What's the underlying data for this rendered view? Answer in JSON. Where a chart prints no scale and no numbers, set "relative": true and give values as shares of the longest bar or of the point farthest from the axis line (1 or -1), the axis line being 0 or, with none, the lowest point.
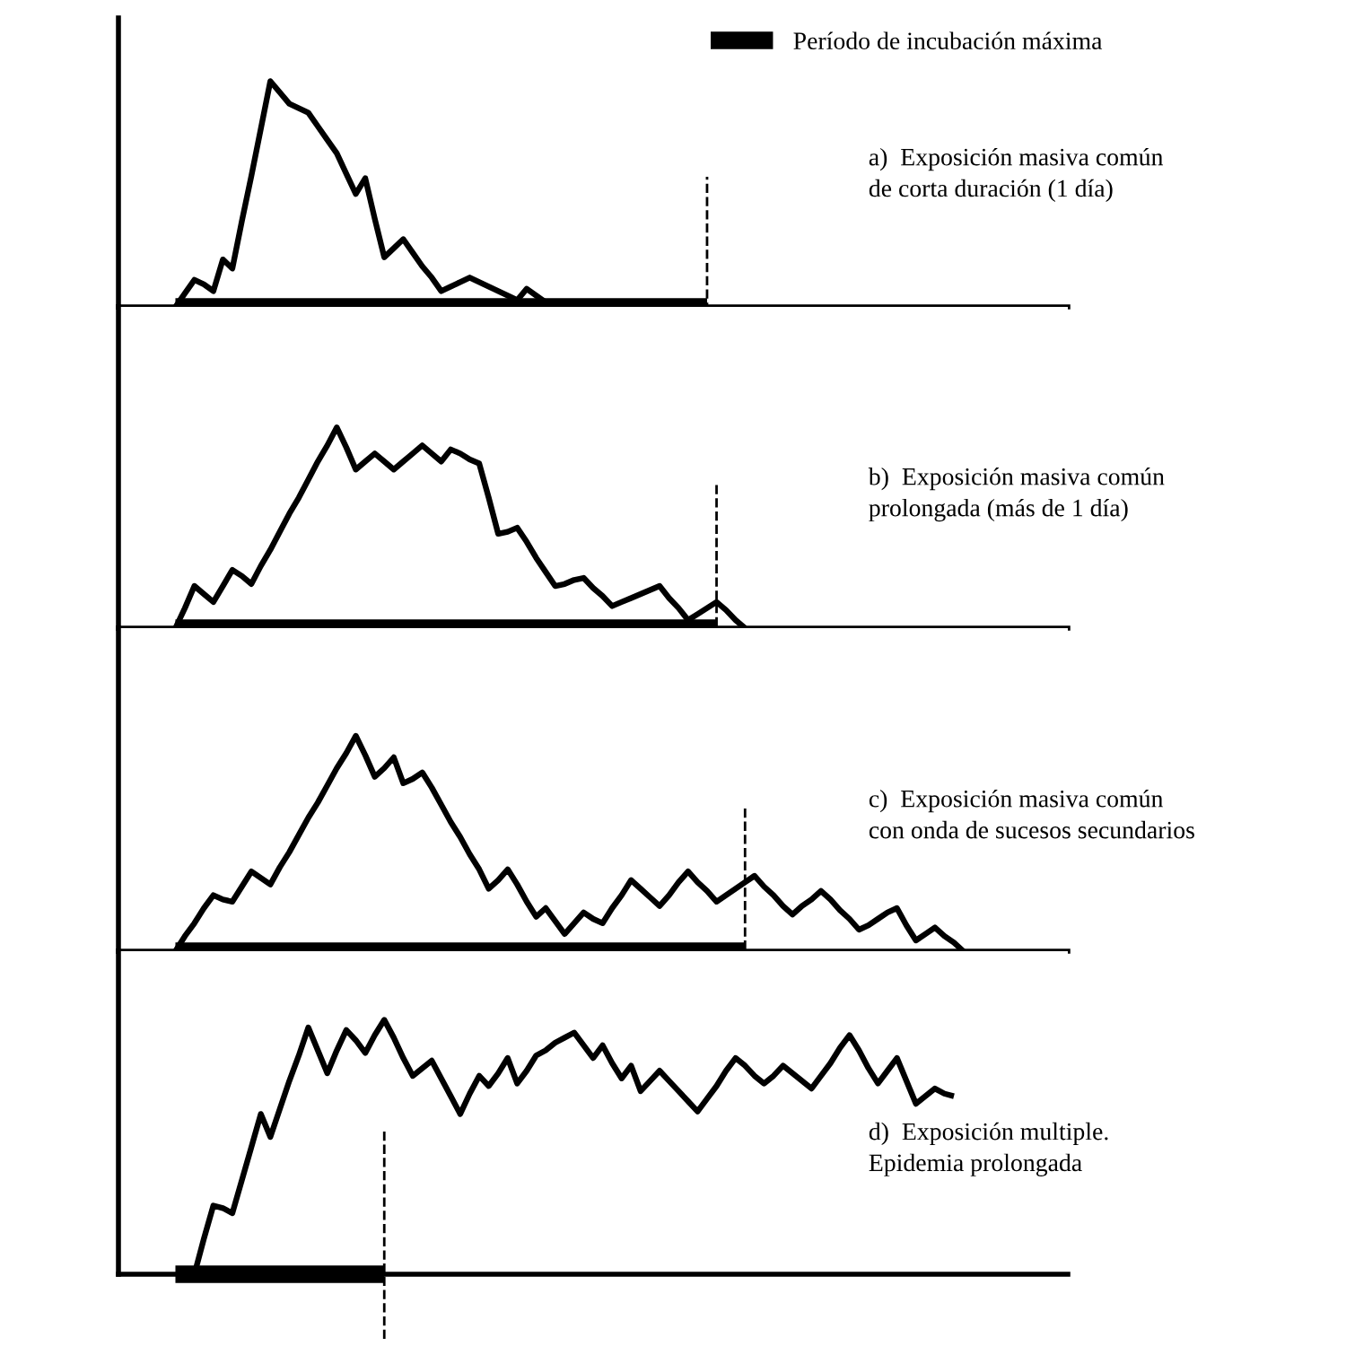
{
  "chart_data": [
    {
      "type": "line",
      "relative": true,
      "legend": "top right",
      "categories": [
        null,
        null,
        null,
        null,
        null,
        null,
        null,
        null,
        null,
        null,
        null,
        null,
        null,
        null,
        null,
        null,
        null,
        null,
        null,
        null,
        null,
        null,
        null,
        null,
        null,
        null,
        null,
        null,
        null,
        null,
        null,
        null,
        null,
        null,
        null,
        null,
        null,
        null,
        null,
        null,
        null,
        null,
        null,
        null,
        null,
        null,
        null,
        null,
        null,
        null,
        null,
        null,
        null,
        null,
        null,
        null,
        null,
        null,
        null,
        null,
        null,
        null,
        null,
        null,
        null,
        null,
        null,
        null,
        null,
        null,
        null,
        null,
        null,
        null,
        null,
        null,
        null,
        null,
        null,
        null,
        null,
        null,
        null,
        null,
        null,
        null,
        null,
        null,
        null,
        null,
        null,
        null,
        null,
        null,
        null,
        null,
        null,
        null,
        null,
        null,
        null
      ],
      "series": [
        {
          "color": "#000000",
          "values": [
            null,
            null,
            null,
            null,
            null,
            null,
            0.0,
            0.06,
            0.12,
            0.1,
            0.07,
            0.21,
            0.17,
            0.38,
            0.58,
            0.79,
            1.0,
            0.95,
            0.9,
            0.88,
            0.86,
            0.8,
            0.74,
            0.68,
            0.59,
            0.5,
            0.57,
            0.39,
            0.22,
            0.26,
            0.3,
            0.24,
            0.18,
            0.13,
            0.07,
            0.09,
            0.11,
            0.13,
            0.11,
            0.09,
            0.07,
            0.05,
            0.03,
            0.08,
            0.05,
            0.02,
            null,
            null,
            null,
            null,
            null,
            null,
            null,
            null,
            null,
            null,
            null,
            null,
            null,
            null,
            null,
            null,
            null,
            null,
            null,
            null,
            null,
            null,
            null,
            null,
            null,
            null,
            null,
            null,
            null,
            null,
            null,
            null,
            null,
            null,
            null,
            null,
            null,
            null,
            null,
            null,
            null,
            null,
            null,
            null,
            null,
            null,
            null,
            null,
            null,
            null,
            null,
            null,
            null,
            null,
            null
          ]
        },
        {
          "name": "Período de incubación máxima",
          "color": "#000000",
          "values": [
            null,
            null,
            null,
            null,
            null,
            null,
            0,
            0,
            0,
            0,
            0,
            0,
            0,
            0,
            0,
            0,
            0,
            0,
            0,
            0,
            0,
            0,
            0,
            0,
            0,
            0,
            0,
            0,
            0,
            0,
            0,
            0,
            0,
            0,
            0,
            0,
            0,
            0,
            0,
            0,
            0,
            0,
            0,
            0,
            0,
            0,
            0,
            0,
            0,
            0,
            0,
            0,
            0,
            0,
            0,
            0,
            0,
            0,
            0,
            0,
            0,
            0,
            0,
            null,
            null,
            null,
            null,
            null,
            null,
            null,
            null,
            null,
            null,
            null,
            null,
            null,
            null,
            null,
            null,
            null,
            null,
            null,
            null,
            null,
            null,
            null,
            null,
            null,
            null,
            null,
            null,
            null,
            null,
            null,
            null,
            null,
            null,
            null,
            null,
            null,
            null
          ]
        }
      ],
      "annotations": [
        "a)  Exposición masiva común\nde corta duración (1 día)"
      ]
    },
    {
      "type": "line",
      "relative": true,
      "categories": [
        null,
        null,
        null,
        null,
        null,
        null,
        null,
        null,
        null,
        null,
        null,
        null,
        null,
        null,
        null,
        null,
        null,
        null,
        null,
        null,
        null,
        null,
        null,
        null,
        null,
        null,
        null,
        null,
        null,
        null,
        null,
        null,
        null,
        null,
        null,
        null,
        null,
        null,
        null,
        null,
        null,
        null,
        null,
        null,
        null,
        null,
        null,
        null,
        null,
        null,
        null,
        null,
        null,
        null,
        null,
        null,
        null,
        null,
        null,
        null,
        null,
        null,
        null,
        null,
        null,
        null,
        null,
        null,
        null,
        null,
        null,
        null,
        null,
        null,
        null,
        null,
        null,
        null,
        null,
        null,
        null,
        null,
        null,
        null,
        null,
        null,
        null,
        null,
        null,
        null,
        null,
        null,
        null,
        null,
        null,
        null,
        null,
        null,
        null,
        null,
        null
      ],
      "series": [
        {
          "color": "#000000",
          "values": [
            null,
            null,
            null,
            null,
            null,
            null,
            0.0,
            0.1,
            0.21,
            0.17,
            0.13,
            0.21,
            0.29,
            0.26,
            0.22,
            0.31,
            0.39,
            0.48,
            0.57,
            0.65,
            0.74,
            0.83,
            0.91,
            1.0,
            0.9,
            0.79,
            0.83,
            0.87,
            0.83,
            0.79,
            0.83,
            0.87,
            0.91,
            0.87,
            0.83,
            0.89,
            0.87,
            0.84,
            0.82,
            0.65,
            0.47,
            0.48,
            0.5,
            0.43,
            0.35,
            0.28,
            0.21,
            0.22,
            0.24,
            0.25,
            0.2,
            0.16,
            0.11,
            0.13,
            0.15,
            0.17,
            0.19,
            0.21,
            0.15,
            0.1,
            0.04,
            0.07,
            0.1,
            0.13,
            0.09,
            0.04,
            0.0,
            null,
            null,
            null,
            null,
            null,
            null,
            null,
            null,
            null,
            null,
            null,
            null,
            null,
            null,
            null,
            null,
            null,
            null,
            null,
            null,
            null,
            null,
            null,
            null,
            null,
            null,
            null,
            null,
            null,
            null,
            null,
            null,
            null,
            null
          ]
        },
        {
          "color": "#000000",
          "values": [
            null,
            null,
            null,
            null,
            null,
            null,
            0,
            0,
            0,
            0,
            0,
            0,
            0,
            0,
            0,
            0,
            0,
            0,
            0,
            0,
            0,
            0,
            0,
            0,
            0,
            0,
            0,
            0,
            0,
            0,
            0,
            0,
            0,
            0,
            0,
            0,
            0,
            0,
            0,
            0,
            0,
            0,
            0,
            0,
            0,
            0,
            0,
            0,
            0,
            0,
            0,
            0,
            0,
            0,
            0,
            0,
            0,
            0,
            0,
            0,
            0,
            0,
            0,
            0,
            null,
            null,
            null,
            null,
            null,
            null,
            null,
            null,
            null,
            null,
            null,
            null,
            null,
            null,
            null,
            null,
            null,
            null,
            null,
            null,
            null,
            null,
            null,
            null,
            null,
            null,
            null,
            null,
            null,
            null,
            null,
            null,
            null,
            null,
            null,
            null,
            null
          ]
        }
      ],
      "annotations": [
        "b)  Exposición masiva común\nprolongada (más de 1 día)"
      ]
    },
    {
      "type": "line",
      "relative": true,
      "categories": [
        null,
        null,
        null,
        null,
        null,
        null,
        null,
        null,
        null,
        null,
        null,
        null,
        null,
        null,
        null,
        null,
        null,
        null,
        null,
        null,
        null,
        null,
        null,
        null,
        null,
        null,
        null,
        null,
        null,
        null,
        null,
        null,
        null,
        null,
        null,
        null,
        null,
        null,
        null,
        null,
        null,
        null,
        null,
        null,
        null,
        null,
        null,
        null,
        null,
        null,
        null,
        null,
        null,
        null,
        null,
        null,
        null,
        null,
        null,
        null,
        null,
        null,
        null,
        null,
        null,
        null,
        null,
        null,
        null,
        null,
        null,
        null,
        null,
        null,
        null,
        null,
        null,
        null,
        null,
        null,
        null,
        null,
        null,
        null,
        null,
        null,
        null,
        null,
        null,
        null,
        null,
        null,
        null,
        null,
        null,
        null,
        null,
        null,
        null,
        null,
        null
      ],
      "series": [
        {
          "color": "#000000",
          "values": [
            null,
            null,
            null,
            null,
            null,
            null,
            0.0,
            0.07,
            0.13,
            0.2,
            0.26,
            0.24,
            0.23,
            0.3,
            0.37,
            0.34,
            0.31,
            0.39,
            0.46,
            0.54,
            0.62,
            0.69,
            0.77,
            0.85,
            0.92,
            1.0,
            0.91,
            0.81,
            0.85,
            0.9,
            0.78,
            0.8,
            0.83,
            0.76,
            0.68,
            0.6,
            0.53,
            0.45,
            0.38,
            0.29,
            0.33,
            0.38,
            0.31,
            0.23,
            0.16,
            0.2,
            0.14,
            0.08,
            0.13,
            0.18,
            0.15,
            0.13,
            0.2,
            0.26,
            0.33,
            0.29,
            0.25,
            0.21,
            0.26,
            0.32,
            0.37,
            0.32,
            0.28,
            0.23,
            0.26,
            0.29,
            0.32,
            0.35,
            0.3,
            0.26,
            0.21,
            0.17,
            0.21,
            0.24,
            0.28,
            0.24,
            0.19,
            0.15,
            0.1,
            0.12,
            0.15,
            0.18,
            0.2,
            0.12,
            0.05,
            0.08,
            0.11,
            0.07,
            0.04,
            0.0,
            null,
            null,
            null,
            null,
            null,
            null,
            null,
            null,
            null,
            null,
            null
          ]
        },
        {
          "color": "#000000",
          "values": [
            null,
            null,
            null,
            null,
            null,
            null,
            0,
            0,
            0,
            0,
            0,
            0,
            0,
            0,
            0,
            0,
            0,
            0,
            0,
            0,
            0,
            0,
            0,
            0,
            0,
            0,
            0,
            0,
            0,
            0,
            0,
            0,
            0,
            0,
            0,
            0,
            0,
            0,
            0,
            0,
            0,
            0,
            0,
            0,
            0,
            0,
            0,
            0,
            0,
            0,
            0,
            0,
            0,
            0,
            0,
            0,
            0,
            0,
            0,
            0,
            0,
            0,
            0,
            0,
            0,
            0,
            0,
            null,
            null,
            null,
            null,
            null,
            null,
            null,
            null,
            null,
            null,
            null,
            null,
            null,
            null,
            null,
            null,
            null,
            null,
            null,
            null,
            null,
            null,
            null,
            null,
            null,
            null,
            null,
            null,
            null,
            null,
            null,
            null,
            null,
            null
          ]
        }
      ],
      "annotations": [
        "c)  Exposición masiva común\ncon onda de sucesos secundarios"
      ]
    },
    {
      "type": "line",
      "relative": true,
      "categories": [
        null,
        null,
        null,
        null,
        null,
        null,
        null,
        null,
        null,
        null,
        null,
        null,
        null,
        null,
        null,
        null,
        null,
        null,
        null,
        null,
        null,
        null,
        null,
        null,
        null,
        null,
        null,
        null,
        null,
        null,
        null,
        null,
        null,
        null,
        null,
        null,
        null,
        null,
        null,
        null,
        null,
        null,
        null,
        null,
        null,
        null,
        null,
        null,
        null,
        null,
        null,
        null,
        null,
        null,
        null,
        null,
        null,
        null,
        null,
        null,
        null,
        null,
        null,
        null,
        null,
        null,
        null,
        null,
        null,
        null,
        null,
        null,
        null,
        null,
        null,
        null,
        null,
        null,
        null,
        null,
        null,
        null,
        null,
        null,
        null,
        null,
        null,
        null,
        null,
        null,
        null,
        null,
        null,
        null,
        null,
        null,
        null,
        null,
        null,
        null,
        null
      ],
      "series": [
        {
          "color": "#000000",
          "values": [
            null,
            null,
            null,
            null,
            null,
            null,
            null,
            null,
            0.0,
            0.14,
            0.27,
            0.26,
            0.24,
            0.37,
            0.5,
            0.63,
            0.54,
            0.65,
            0.76,
            0.86,
            0.97,
            0.88,
            0.79,
            0.88,
            0.96,
            0.92,
            0.87,
            0.94,
            1.0,
            0.93,
            0.85,
            0.78,
            0.81,
            0.84,
            0.77,
            0.7,
            0.63,
            0.71,
            0.78,
            0.74,
            0.79,
            0.85,
            0.75,
            0.8,
            0.86,
            0.88,
            0.91,
            0.93,
            0.95,
            0.9,
            0.85,
            0.9,
            0.83,
            0.77,
            0.82,
            0.72,
            0.76,
            0.8,
            0.76,
            0.72,
            0.68,
            0.64,
            0.69,
            0.74,
            0.8,
            0.85,
            0.82,
            0.78,
            0.75,
            0.78,
            0.82,
            0.79,
            0.76,
            0.73,
            0.78,
            0.83,
            0.89,
            0.94,
            0.88,
            0.81,
            0.75,
            0.8,
            0.85,
            0.76,
            0.67,
            0.7,
            0.73,
            0.71,
            0.7,
            null,
            null,
            null,
            null,
            null,
            null,
            null,
            null,
            null,
            null,
            null,
            null
          ]
        },
        {
          "color": "#000000",
          "values": [
            null,
            null,
            null,
            null,
            null,
            null,
            0,
            0,
            0,
            0,
            0,
            0,
            0,
            0,
            0,
            0,
            0,
            0,
            0,
            0,
            0,
            0,
            0,
            0,
            0,
            0,
            0,
            0,
            0,
            null,
            null,
            null,
            null,
            null,
            null,
            null,
            null,
            null,
            null,
            null,
            null,
            null,
            null,
            null,
            null,
            null,
            null,
            null,
            null,
            null,
            null,
            null,
            null,
            null,
            null,
            null,
            null,
            null,
            null,
            null,
            null,
            null,
            null,
            null,
            null,
            null,
            null,
            null,
            null,
            null,
            null,
            null,
            null,
            null,
            null,
            null,
            null,
            null,
            null,
            null,
            null,
            null,
            null,
            null,
            null,
            null,
            null,
            null,
            null,
            null,
            null,
            null,
            null,
            null,
            null,
            null,
            null,
            null,
            null,
            null,
            null
          ]
        }
      ],
      "annotations": [
        "d)  Exposición multiple.\nEpidemia prolongada"
      ]
    }
  ]
}
